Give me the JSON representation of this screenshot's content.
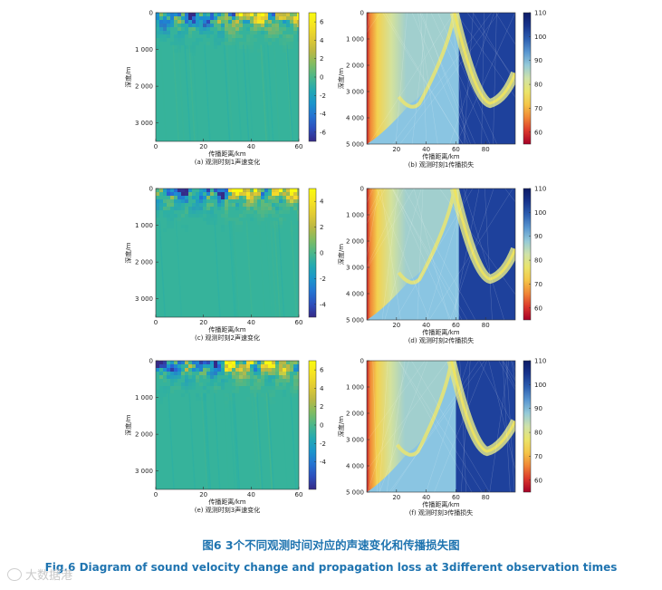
{
  "figure": {
    "caption_cn": "图6 3个不同观测时间对应的声速变化和传播损失图",
    "caption_en": "Fig.6 Diagram of sound velocity change and propagation loss at 3different observation times",
    "watermark": "大数据港"
  },
  "colors": {
    "velocity_map": [
      "#352a87",
      "#2a5fd4",
      "#1a93cf",
      "#26b0a9",
      "#6fbd6b",
      "#c3b740",
      "#f5d82a",
      "#f9fb0e"
    ],
    "loss_map": [
      "#a50026",
      "#e8452e",
      "#f6b03c",
      "#f1e45a",
      "#cfe2a8",
      "#87c4e4",
      "#3a77c2",
      "#1a3a97",
      "#0d1b66"
    ]
  },
  "chart_data": [
    {
      "type": "heatmap",
      "id": "a",
      "title": "(a) 观测时刻1声速变化",
      "xlabel": "传播距离/km",
      "ylabel": "深度/m",
      "xlim": [
        0,
        60
      ],
      "ylim": [
        0,
        3500
      ],
      "x_ticks": [
        "0",
        "20",
        "40",
        "60"
      ],
      "y_ticks": [
        "0",
        "1 000",
        "2 000",
        "3 000"
      ],
      "colorbar": {
        "min": -7,
        "max": 7,
        "ticks": [
          "6",
          "4",
          "2",
          "0",
          "-2",
          "-4",
          "-6"
        ]
      }
    },
    {
      "type": "heatmap",
      "id": "b",
      "title": "(b) 观测时刻1传播损失",
      "xlabel": "传播距离/km",
      "ylabel": "深度/m",
      "xlim": [
        0,
        100
      ],
      "ylim": [
        0,
        5000
      ],
      "x_ticks": [
        "20",
        "40",
        "60",
        "80"
      ],
      "y_ticks": [
        "0",
        "1 000",
        "2 000",
        "3 000",
        "4 000",
        "5 000"
      ],
      "convergence_zone_km": 59,
      "colorbar": {
        "min": 55,
        "max": 110,
        "ticks": [
          "110",
          "100",
          "90",
          "80",
          "70",
          "60"
        ]
      }
    },
    {
      "type": "heatmap",
      "id": "c",
      "title": "(c) 观测时刻2声速变化",
      "xlabel": "传播距离/km",
      "ylabel": "深度/m",
      "xlim": [
        0,
        60
      ],
      "ylim": [
        0,
        3500
      ],
      "x_ticks": [
        "0",
        "20",
        "40",
        "60"
      ],
      "y_ticks": [
        "0",
        "1 000",
        "2 000",
        "3 000"
      ],
      "colorbar": {
        "min": -5,
        "max": 5,
        "ticks": [
          "4",
          "2",
          "0",
          "-2",
          "-4"
        ]
      }
    },
    {
      "type": "heatmap",
      "id": "d",
      "title": "(d) 观测时刻2传播损失",
      "xlabel": "传播距离/km",
      "ylabel": "深度/m",
      "xlim": [
        0,
        100
      ],
      "ylim": [
        0,
        5000
      ],
      "x_ticks": [
        "20",
        "40",
        "60",
        "80"
      ],
      "y_ticks": [
        "0",
        "1 000",
        "2 000",
        "3 000",
        "4 000",
        "5 000"
      ],
      "convergence_zone_km": 59,
      "colorbar": {
        "min": 55,
        "max": 110,
        "ticks": [
          "110",
          "100",
          "90",
          "80",
          "70",
          "60"
        ]
      }
    },
    {
      "type": "heatmap",
      "id": "e",
      "title": "(e) 观测时刻3声速变化",
      "xlabel": "传播距离/km",
      "ylabel": "深度/m",
      "xlim": [
        0,
        60
      ],
      "ylim": [
        0,
        3500
      ],
      "x_ticks": [
        "0",
        "20",
        "40",
        "60"
      ],
      "y_ticks": [
        "0",
        "1 000",
        "2 000",
        "3 000"
      ],
      "colorbar": {
        "min": -7,
        "max": 7,
        "ticks": [
          "6",
          "4",
          "2",
          "0",
          "-2",
          "-4"
        ]
      }
    },
    {
      "type": "heatmap",
      "id": "f",
      "title": "(f) 观测时刻3传播损失",
      "xlabel": "传播距离/km",
      "ylabel": "深度/m",
      "xlim": [
        0,
        100
      ],
      "ylim": [
        0,
        5000
      ],
      "x_ticks": [
        "20",
        "40",
        "60",
        "80"
      ],
      "y_ticks": [
        "0",
        "1 000",
        "2 000",
        "3 000",
        "4 000",
        "5 000"
      ],
      "convergence_zone_km": 57,
      "colorbar": {
        "min": 55,
        "max": 110,
        "ticks": [
          "110",
          "100",
          "90",
          "80",
          "70",
          "60"
        ]
      }
    }
  ]
}
